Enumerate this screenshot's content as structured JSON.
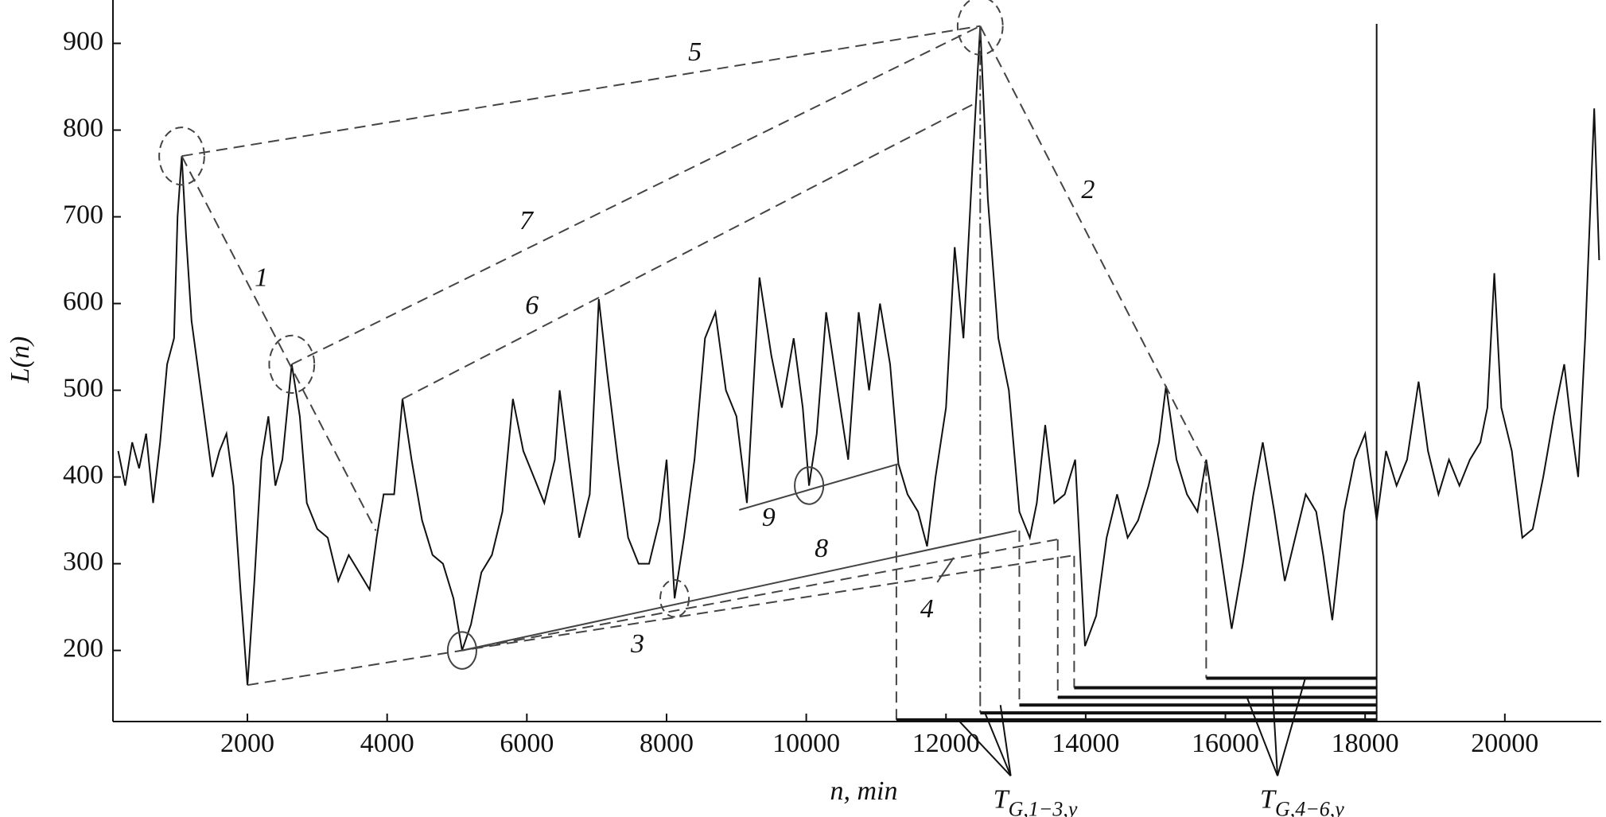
{
  "chart_data": {
    "type": "line",
    "x_label": "n, min",
    "y_label": "L(n)",
    "xlim": [
      75,
      21380
    ],
    "ylim": [
      118,
      950
    ],
    "xticks": [
      2000,
      4000,
      6000,
      8000,
      10000,
      12000,
      14000,
      16000,
      18000,
      20000
    ],
    "yticks": [
      200,
      300,
      400,
      500,
      600,
      700,
      800,
      900
    ],
    "series": [
      {
        "color": "#111111",
        "x": [
          150,
          250,
          350,
          450,
          550,
          650,
          750,
          850,
          950,
          1000,
          1060,
          1120,
          1200,
          1300,
          1400,
          1500,
          1600,
          1700,
          1800,
          1900,
          2000,
          2100,
          2200,
          2300,
          2400,
          2500,
          2635,
          2750,
          2850,
          3000,
          3150,
          3300,
          3450,
          3600,
          3750,
          3850,
          3950,
          4100,
          4220,
          4350,
          4500,
          4650,
          4800,
          4950,
          5073,
          5200,
          5350,
          5500,
          5650,
          5800,
          5950,
          6100,
          6250,
          6400,
          6470,
          6600,
          6750,
          6900,
          7030,
          7150,
          7300,
          7450,
          7600,
          7750,
          7900,
          8000,
          8115,
          8250,
          8400,
          8550,
          8700,
          8850,
          9000,
          9150,
          9330,
          9500,
          9650,
          9820,
          9950,
          10040,
          10150,
          10285,
          10450,
          10600,
          10750,
          10900,
          11055,
          11200,
          11320,
          11450,
          11600,
          11730,
          11850,
          12000,
          12125,
          12250,
          12380,
          12490,
          12600,
          12750,
          12900,
          13050,
          13200,
          13300,
          13420,
          13550,
          13700,
          13850,
          13990,
          14150,
          14300,
          14450,
          14600,
          14750,
          14900,
          15050,
          15150,
          15300,
          15450,
          15600,
          15725,
          15900,
          16090,
          16250,
          16400,
          16535,
          16700,
          16850,
          17000,
          17150,
          17300,
          17400,
          17530,
          17700,
          17850,
          18000,
          18165,
          18300,
          18450,
          18600,
          18765,
          18900,
          19050,
          19200,
          19350,
          19500,
          19650,
          19750,
          19850,
          19950,
          20100,
          20250,
          20400,
          20550,
          20700,
          20850,
          20950,
          21050,
          21150,
          21280,
          21350
        ],
        "values": [
          430,
          390,
          440,
          410,
          450,
          370,
          440,
          530,
          560,
          700,
          770,
          680,
          580,
          520,
          460,
          400,
          430,
          450,
          390,
          270,
          160,
          280,
          420,
          470,
          390,
          420,
          530,
          470,
          370,
          340,
          330,
          280,
          310,
          290,
          270,
          330,
          380,
          380,
          490,
          420,
          350,
          310,
          300,
          260,
          200,
          230,
          290,
          310,
          360,
          490,
          430,
          400,
          370,
          420,
          500,
          420,
          330,
          380,
          605,
          520,
          420,
          330,
          300,
          300,
          350,
          420,
          260,
          330,
          420,
          560,
          590,
          500,
          470,
          370,
          630,
          540,
          480,
          560,
          480,
          390,
          450,
          590,
          500,
          420,
          590,
          500,
          600,
          530,
          415,
          380,
          360,
          320,
          400,
          480,
          665,
          560,
          760,
          920,
          720,
          560,
          500,
          360,
          330,
          370,
          460,
          370,
          380,
          420,
          205,
          240,
          330,
          380,
          330,
          350,
          390,
          440,
          505,
          420,
          380,
          360,
          420,
          330,
          225,
          300,
          380,
          440,
          360,
          280,
          330,
          380,
          360,
          310,
          235,
          360,
          420,
          450,
          350,
          430,
          390,
          420,
          510,
          430,
          380,
          420,
          390,
          420,
          440,
          480,
          635,
          480,
          430,
          330,
          340,
          400,
          470,
          530,
          460,
          400,
          560,
          825,
          650
        ]
      }
    ],
    "trend_lines": [
      {
        "label": "1",
        "style": "dashed",
        "x": [
          1060,
          3840
        ],
        "y": [
          770,
          338
        ]
      },
      {
        "label": "5",
        "style": "dashed",
        "x": [
          1060,
          12490
        ],
        "y": [
          770,
          920
        ]
      },
      {
        "label": "2",
        "style": "dashed",
        "x": [
          12490,
          15725
        ],
        "y": [
          920,
          414
        ]
      },
      {
        "label": "7",
        "style": "dashed",
        "x": [
          2635,
          12490
        ],
        "y": [
          530,
          920
        ]
      },
      {
        "label": "6",
        "style": "dashed",
        "x": [
          4220,
          12420
        ],
        "y": [
          490,
          831
        ]
      },
      {
        "label": "3",
        "style": "dashed",
        "x": [
          2000,
          5073,
          13785
        ],
        "y": [
          160,
          200,
          309
        ]
      },
      {
        "style": "dashed",
        "x": [
          5073,
          13590
        ],
        "y": [
          200,
          328
        ]
      },
      {
        "label": "8",
        "style": "solid",
        "x": [
          5073,
          13010
        ],
        "y": [
          200,
          338
        ]
      },
      {
        "label": "9",
        "style": "solid",
        "x": [
          9040,
          11320
        ],
        "y": [
          362,
          415
        ]
      }
    ],
    "callout": {
      "label": "4",
      "x": 12110,
      "y": 307
    },
    "circles": [
      {
        "style": "dashed",
        "x": 1060,
        "y": 770
      },
      {
        "style": "dashed",
        "x": 2635,
        "y": 530
      },
      {
        "style": "dashed",
        "x": 12490,
        "y": 920
      },
      {
        "style": "solid",
        "x": 5073,
        "y": 200
      },
      {
        "style": "dashed",
        "x": 8115,
        "y": 260
      },
      {
        "style": "solid",
        "x": 10040,
        "y": 390
      }
    ],
    "thresholds": {
      "x": [
        11290,
        12490,
        13050,
        13600,
        13835,
        15725
      ],
      "top": [
        415,
        920,
        338,
        328,
        309,
        414
      ],
      "level": [
        120,
        128,
        137,
        146,
        157,
        168
      ],
      "end": 18165
    },
    "group_labels": [
      {
        "text": "T",
        "sub": "G,1−3,y"
      },
      {
        "text": "T",
        "sub": "G,4−6,y"
      }
    ]
  }
}
